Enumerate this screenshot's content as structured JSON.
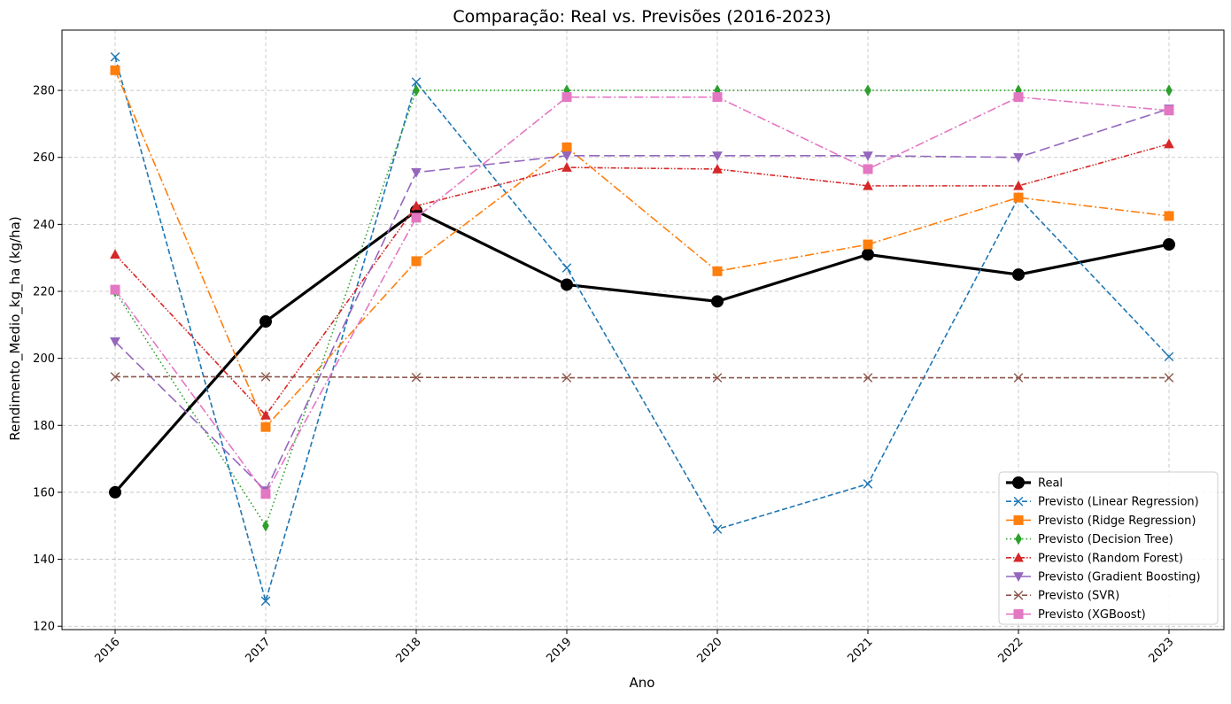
{
  "chart_data": {
    "type": "line",
    "title": "Comparação: Real vs. Previsões (2016-2023)",
    "xlabel": "Ano",
    "ylabel": "Rendimento_Medio_kg_ha (kg/ha)",
    "x": [
      "2016",
      "2017",
      "2018",
      "2019",
      "2020",
      "2021",
      "2022",
      "2023"
    ],
    "ylim": [
      119,
      298
    ],
    "yticks": [
      120,
      140,
      160,
      180,
      200,
      220,
      240,
      260,
      280
    ],
    "grid": true,
    "legend_position": "lower-right",
    "series": [
      {
        "name": "Real",
        "color": "#000000",
        "marker": "circle",
        "line_style": "solid",
        "values": [
          160,
          211,
          244,
          222,
          217,
          231,
          225,
          234
        ]
      },
      {
        "name": "Previsto (Linear Regression)",
        "color": "#1f77b4",
        "marker": "x",
        "line_style": "dashed",
        "values": [
          290,
          127.5,
          282.5,
          227,
          149,
          162.5,
          248,
          200.5
        ]
      },
      {
        "name": "Previsto (Ridge Regression)",
        "color": "#ff7f0e",
        "marker": "square",
        "line_style": "dashdot",
        "values": [
          286,
          179.5,
          229,
          263,
          226,
          234,
          248,
          242.5
        ]
      },
      {
        "name": "Previsto (Decision Tree)",
        "color": "#2ca02c",
        "marker": "thin-diamond",
        "line_style": "dotted",
        "values": [
          220,
          150,
          280,
          280,
          280,
          280,
          280,
          280
        ]
      },
      {
        "name": "Previsto (Random Forest)",
        "color": "#d62728",
        "marker": "triangle-up",
        "line_style": "dashdotdot",
        "values": [
          231,
          183,
          245.5,
          257,
          256.5,
          251.5,
          251.5,
          264
        ]
      },
      {
        "name": "Previsto (Gradient Boosting)",
        "color": "#9467bd",
        "marker": "triangle-down",
        "line_style": "longdash",
        "values": [
          205,
          160.5,
          255.5,
          260.5,
          260.5,
          260.5,
          260,
          274.5
        ]
      },
      {
        "name": "Previsto (SVR)",
        "color": "#8c564b",
        "marker": "x",
        "line_style": "dashed",
        "values": [
          194.5,
          194.5,
          194.3,
          194.2,
          194.2,
          194.2,
          194.2,
          194.2
        ]
      },
      {
        "name": "Previsto (XGBoost)",
        "color": "#e377c2",
        "marker": "square",
        "line_style": "dashdot",
        "values": [
          220.5,
          159.5,
          242,
          278,
          278,
          256.5,
          278,
          274
        ]
      }
    ]
  }
}
